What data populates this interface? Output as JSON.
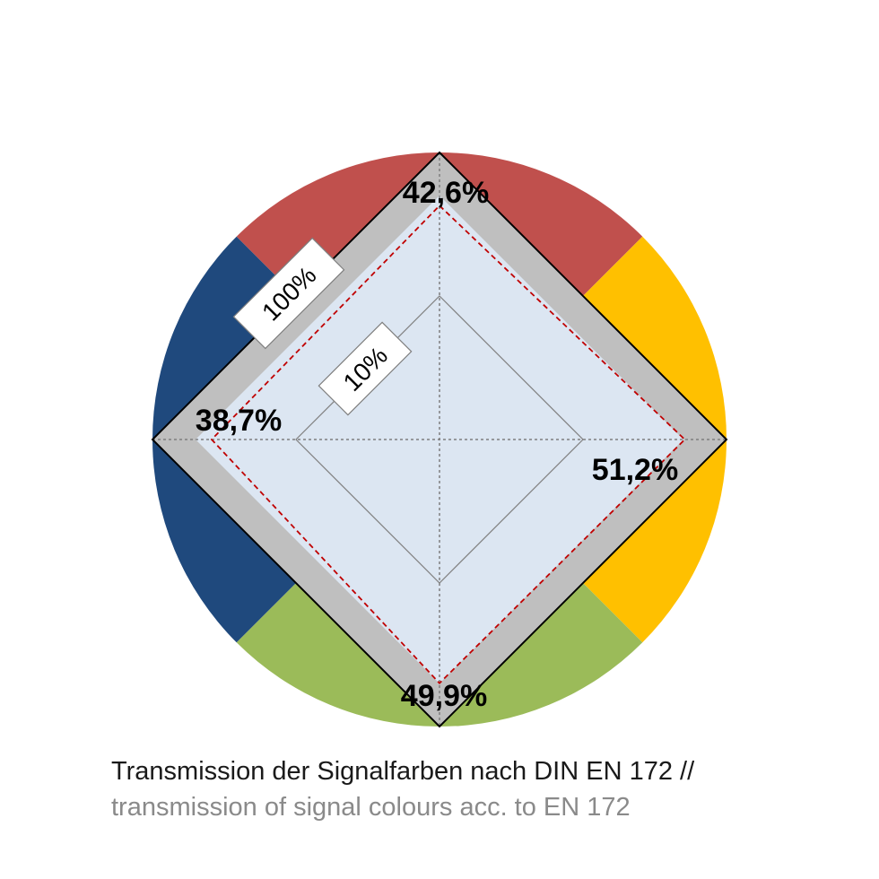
{
  "chart_data": {
    "type": "radar",
    "axes": [
      {
        "color_name": "red",
        "color": "#C0504D",
        "direction": "top",
        "value": 42.6,
        "label": "42,6%"
      },
      {
        "color_name": "yellow",
        "color": "#FFC000",
        "direction": "right",
        "value": 51.2,
        "label": "51,2%"
      },
      {
        "color_name": "green",
        "color": "#9BBB59",
        "direction": "bottom",
        "value": 49.9,
        "label": "49,9%"
      },
      {
        "color_name": "blue",
        "color": "#1F497D",
        "direction": "left",
        "value": 38.7,
        "label": "38,7%"
      }
    ],
    "scale": "log",
    "rings": [
      {
        "value": 10,
        "label": "10%"
      },
      {
        "value": 100,
        "label": "100%"
      }
    ],
    "caption_primary": "Transmission der Signalfarben nach DIN EN 172 //",
    "caption_secondary": "transmission of signal colours acc. to EN 172"
  }
}
